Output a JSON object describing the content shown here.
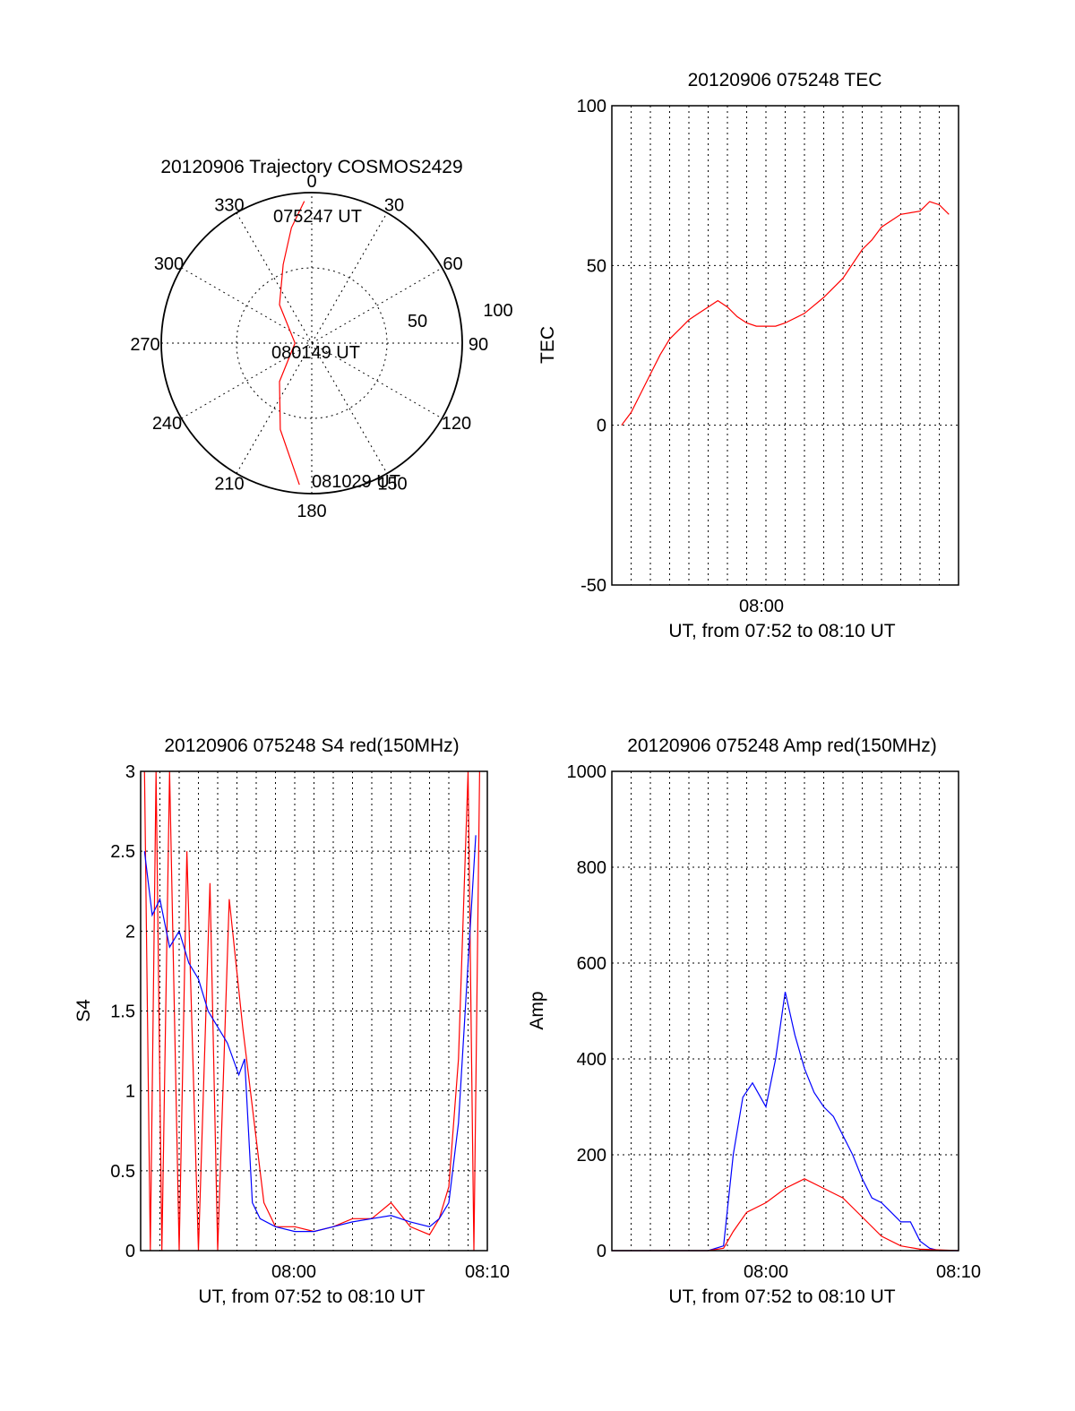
{
  "chart_data": [
    {
      "id": "trajectory",
      "type": "polar",
      "title": "20120906 Trajectory COSMOS2429",
      "azimuth_labels": [
        "0",
        "30",
        "60",
        "90",
        "120",
        "150",
        "180",
        "210",
        "240",
        "270",
        "300",
        "330"
      ],
      "radius_labels": [
        "50",
        "100"
      ],
      "time_labels": [
        "075247 UT",
        "080149 UT",
        "081029 UT"
      ],
      "track_color": "#ff0000",
      "track": [
        {
          "az": 357,
          "el": 5
        },
        {
          "az": 350,
          "el": 20
        },
        {
          "az": 340,
          "el": 40
        },
        {
          "az": 320,
          "el": 60
        },
        {
          "az": 270,
          "el": 80
        },
        {
          "az": 220,
          "el": 60
        },
        {
          "az": 200,
          "el": 35
        },
        {
          "az": 185,
          "el": 5
        }
      ]
    },
    {
      "id": "tec",
      "type": "line",
      "title": "20120906 075248 TEC",
      "xlabel": "UT, from 07:52 to 08:10 UT",
      "ylabel": "TEC",
      "xticklabels": [
        "08:00"
      ],
      "yticks": [
        "100",
        "50",
        "0",
        "-50"
      ],
      "ylim": [
        -50,
        100
      ],
      "color": "#ff0000",
      "series": [
        {
          "values": [
            [
              0.5,
              0
            ],
            [
              1.0,
              4
            ],
            [
              1.5,
              10
            ],
            [
              2.0,
              16
            ],
            [
              2.5,
              22
            ],
            [
              3.0,
              27
            ],
            [
              3.5,
              30
            ],
            [
              4.0,
              33
            ],
            [
              4.5,
              35
            ],
            [
              5.0,
              37
            ],
            [
              5.5,
              39
            ],
            [
              6.0,
              37
            ],
            [
              6.5,
              34
            ],
            [
              7.0,
              32
            ],
            [
              7.5,
              31
            ],
            [
              8.0,
              31
            ],
            [
              8.5,
              31
            ],
            [
              9.0,
              32
            ],
            [
              10,
              35
            ],
            [
              11,
              40
            ],
            [
              12,
              46
            ],
            [
              13,
              55
            ],
            [
              13.5,
              58
            ],
            [
              14,
              62
            ],
            [
              15,
              66
            ],
            [
              16,
              67
            ],
            [
              16.5,
              70
            ],
            [
              17,
              69
            ],
            [
              17.5,
              66
            ]
          ]
        }
      ]
    },
    {
      "id": "s4",
      "type": "line",
      "title": "20120906 075248 S4 red(150MHz)",
      "xlabel": "UT, from 07:52 to 08:10 UT",
      "ylabel": "S4",
      "xticklabels": [
        "08:00",
        "08:10"
      ],
      "yticks": [
        "3",
        "2.5",
        "2",
        "1.5",
        "1",
        "0.5",
        "0"
      ],
      "ylim": [
        0,
        3
      ],
      "series": [
        {
          "color": "#ff0000",
          "values": [
            [
              0.2,
              3
            ],
            [
              0.5,
              0
            ],
            [
              0.8,
              3
            ],
            [
              1.1,
              0
            ],
            [
              1.5,
              3
            ],
            [
              2,
              0
            ],
            [
              2.4,
              2.5
            ],
            [
              3,
              0
            ],
            [
              3.6,
              2.3
            ],
            [
              4,
              0
            ],
            [
              4.6,
              2.2
            ],
            [
              5.3,
              1.4
            ],
            [
              6.4,
              0.3
            ],
            [
              7,
              0.15
            ],
            [
              8,
              0.15
            ],
            [
              9,
              0.12
            ],
            [
              10,
              0.15
            ],
            [
              11,
              0.2
            ],
            [
              12,
              0.2
            ],
            [
              13,
              0.3
            ],
            [
              14,
              0.15
            ],
            [
              15,
              0.1
            ],
            [
              15.5,
              0.2
            ],
            [
              16,
              0.4
            ],
            [
              16.5,
              1.2
            ],
            [
              17,
              3
            ],
            [
              17.3,
              0
            ],
            [
              17.6,
              3
            ]
          ]
        },
        {
          "color": "#0000ff",
          "values": [
            [
              0.2,
              2.5
            ],
            [
              0.6,
              2.1
            ],
            [
              1,
              2.2
            ],
            [
              1.5,
              1.9
            ],
            [
              2,
              2.0
            ],
            [
              2.5,
              1.8
            ],
            [
              3,
              1.7
            ],
            [
              3.5,
              1.5
            ],
            [
              4,
              1.4
            ],
            [
              4.5,
              1.3
            ],
            [
              5.1,
              1.1
            ],
            [
              5.4,
              1.2
            ],
            [
              5.8,
              0.3
            ],
            [
              6.2,
              0.2
            ],
            [
              7,
              0.15
            ],
            [
              8,
              0.12
            ],
            [
              9,
              0.12
            ],
            [
              10,
              0.15
            ],
            [
              11,
              0.18
            ],
            [
              12,
              0.2
            ],
            [
              13,
              0.22
            ],
            [
              14,
              0.18
            ],
            [
              15,
              0.15
            ],
            [
              15.5,
              0.2
            ],
            [
              16,
              0.3
            ],
            [
              16.5,
              0.8
            ],
            [
              17,
              1.8
            ],
            [
              17.4,
              2.6
            ]
          ]
        }
      ]
    },
    {
      "id": "amp",
      "type": "line",
      "title": "20120906 075248 Amp red(150MHz)",
      "xlabel": "UT, from 07:52 to 08:10 UT",
      "ylabel": "Amp",
      "xticklabels": [
        "08:00",
        "08:10"
      ],
      "yticks": [
        "1000",
        "800",
        "600",
        "400",
        "200",
        "0"
      ],
      "ylim": [
        0,
        1000
      ],
      "series": [
        {
          "color": "#ff0000",
          "values": [
            [
              0,
              0
            ],
            [
              5,
              0
            ],
            [
              5.8,
              5
            ],
            [
              6.3,
              40
            ],
            [
              7,
              80
            ],
            [
              8,
              100
            ],
            [
              9,
              130
            ],
            [
              10,
              150
            ],
            [
              11,
              130
            ],
            [
              12,
              110
            ],
            [
              13,
              70
            ],
            [
              14,
              30
            ],
            [
              15,
              10
            ],
            [
              16,
              3
            ],
            [
              18,
              0
            ]
          ]
        },
        {
          "color": "#0000ff",
          "values": [
            [
              0,
              0
            ],
            [
              5,
              0
            ],
            [
              5.8,
              10
            ],
            [
              6.3,
              200
            ],
            [
              6.8,
              320
            ],
            [
              7.3,
              350
            ],
            [
              8,
              300
            ],
            [
              8.5,
              400
            ],
            [
              9,
              540
            ],
            [
              9.5,
              450
            ],
            [
              10,
              380
            ],
            [
              10.5,
              330
            ],
            [
              11,
              300
            ],
            [
              11.5,
              280
            ],
            [
              12,
              240
            ],
            [
              12.5,
              200
            ],
            [
              13,
              150
            ],
            [
              13.5,
              110
            ],
            [
              14,
              100
            ],
            [
              14.5,
              80
            ],
            [
              15,
              60
            ],
            [
              15.5,
              60
            ],
            [
              16,
              20
            ],
            [
              16.5,
              5
            ],
            [
              17,
              0
            ],
            [
              18,
              0
            ]
          ]
        }
      ]
    }
  ]
}
